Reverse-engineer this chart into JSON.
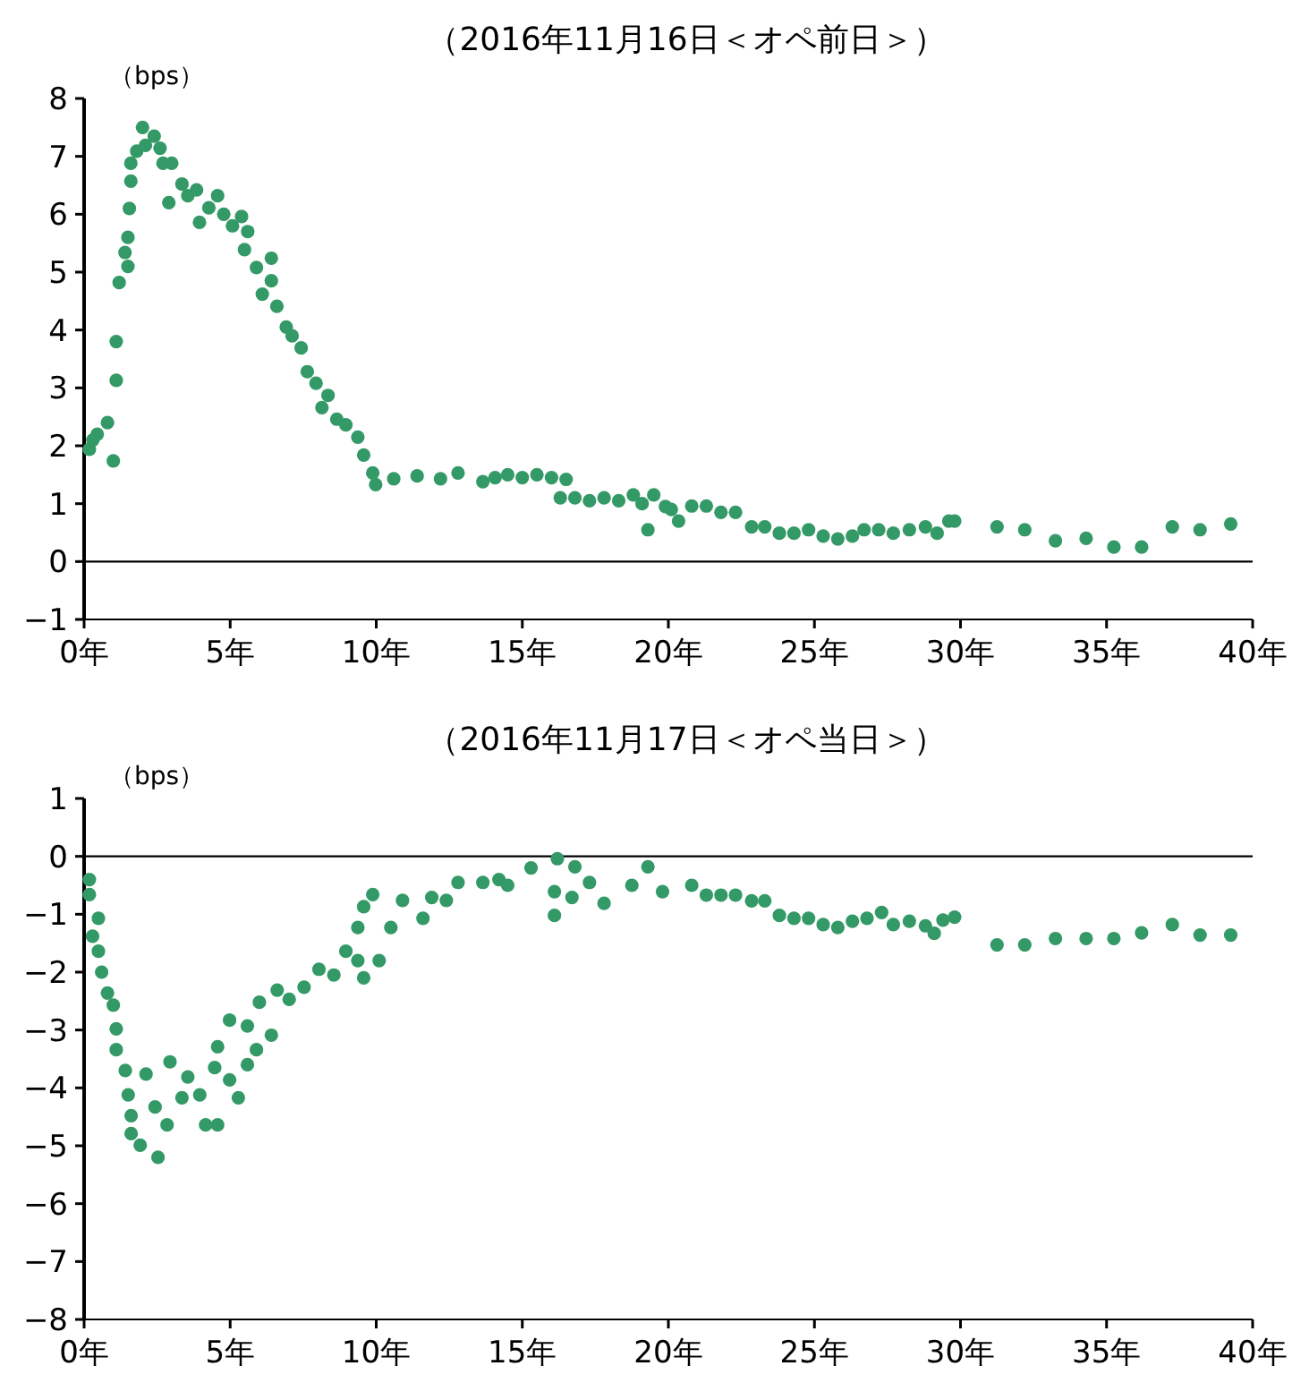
{
  "chart_data": [
    {
      "type": "scatter",
      "title": "（2016年11月16日＜オペ前日＞）",
      "ylabel": "（bps）",
      "marker": "circle",
      "grid": false,
      "xlim": [
        0,
        40
      ],
      "xticks": [
        {
          "value": 0,
          "label": "0年"
        },
        {
          "value": 5,
          "label": "5年"
        },
        {
          "value": 10,
          "label": "10年"
        },
        {
          "value": 15,
          "label": "15年"
        },
        {
          "value": 20,
          "label": "20年"
        },
        {
          "value": 25,
          "label": "25年"
        },
        {
          "value": 30,
          "label": "30年"
        },
        {
          "value": 35,
          "label": "35年"
        },
        {
          "value": 40,
          "label": "40年"
        }
      ],
      "ylim": [
        -1,
        8
      ],
      "yticks": [
        -1,
        0,
        1,
        2,
        3,
        4,
        5,
        6,
        7,
        8
      ],
      "ref_lines": [
        {
          "axis": "y",
          "value": 0,
          "color": "#000000"
        }
      ],
      "series": [
        {
          "color": "#339966",
          "x": [
            0.18,
            0.3,
            0.45,
            0.8,
            1.0,
            1.1,
            1.1,
            1.2,
            1.4,
            1.5,
            1.5,
            1.55,
            1.6,
            1.6,
            1.8,
            2.0,
            2.1,
            2.4,
            2.6,
            2.7,
            3.0,
            2.9,
            3.35,
            3.55,
            3.85,
            3.95,
            4.27,
            4.57,
            4.78,
            5.08,
            5.39,
            5.6,
            5.49,
            5.9,
            6.41,
            6.1,
            6.41,
            6.6,
            6.92,
            7.12,
            7.43,
            7.64,
            7.94,
            8.35,
            8.14,
            8.65,
            8.96,
            9.37,
            9.57,
            9.88,
            9.98,
            10.6,
            11.4,
            12.2,
            12.8,
            13.65,
            14.07,
            14.5,
            15.0,
            15.5,
            16.0,
            16.5,
            16.3,
            16.8,
            17.3,
            17.8,
            18.3,
            18.8,
            19.1,
            19.3,
            19.5,
            19.9,
            20.1,
            20.35,
            20.8,
            21.3,
            21.8,
            22.3,
            22.85,
            23.3,
            23.8,
            24.3,
            24.8,
            25.3,
            25.8,
            26.3,
            26.7,
            27.2,
            27.7,
            28.25,
            28.8,
            29.2,
            29.6,
            29.8,
            31.25,
            32.2,
            33.25,
            34.3,
            35.25,
            36.2,
            37.25,
            38.2,
            39.25
          ],
          "values": [
            1.94,
            2.1,
            2.2,
            2.4,
            1.74,
            3.8,
            3.13,
            4.82,
            5.34,
            5.6,
            5.1,
            6.1,
            6.57,
            6.88,
            7.09,
            7.5,
            7.19,
            7.35,
            7.14,
            6.88,
            6.88,
            6.2,
            6.52,
            6.32,
            6.42,
            5.86,
            6.11,
            6.32,
            6.0,
            5.8,
            5.96,
            5.7,
            5.39,
            5.08,
            5.24,
            4.62,
            4.85,
            4.41,
            4.05,
            3.9,
            3.69,
            3.28,
            3.08,
            2.87,
            2.66,
            2.46,
            2.36,
            2.15,
            1.84,
            1.53,
            1.33,
            1.43,
            1.48,
            1.43,
            1.53,
            1.38,
            1.45,
            1.5,
            1.45,
            1.5,
            1.45,
            1.42,
            1.1,
            1.1,
            1.05,
            1.1,
            1.05,
            1.15,
            1.0,
            0.55,
            1.15,
            0.95,
            0.9,
            0.7,
            0.96,
            0.96,
            0.85,
            0.85,
            0.6,
            0.6,
            0.49,
            0.49,
            0.55,
            0.44,
            0.39,
            0.44,
            0.55,
            0.55,
            0.49,
            0.55,
            0.6,
            0.49,
            0.7,
            0.7,
            0.6,
            0.55,
            0.36,
            0.4,
            0.25,
            0.25,
            0.6,
            0.55,
            0.65
          ]
        }
      ]
    },
    {
      "type": "scatter",
      "title": "（2016年11月17日＜オペ当日＞）",
      "ylabel": "（bps）",
      "marker": "circle",
      "grid": false,
      "xlim": [
        0,
        40
      ],
      "xticks": [
        {
          "value": 0,
          "label": "0年"
        },
        {
          "value": 5,
          "label": "5年"
        },
        {
          "value": 10,
          "label": "10年"
        },
        {
          "value": 15,
          "label": "15年"
        },
        {
          "value": 20,
          "label": "20年"
        },
        {
          "value": 25,
          "label": "25年"
        },
        {
          "value": 30,
          "label": "30年"
        },
        {
          "value": 35,
          "label": "35年"
        },
        {
          "value": 40,
          "label": "40年"
        }
      ],
      "ylim": [
        -8,
        1
      ],
      "yticks": [
        -8,
        -7,
        -6,
        -5,
        -4,
        -3,
        -2,
        -1,
        0,
        1
      ],
      "ref_lines": [
        {
          "axis": "y",
          "value": 0,
          "color": "#000000"
        }
      ],
      "series": [
        {
          "color": "#339966",
          "x": [
            0.18,
            0.18,
            0.49,
            0.29,
            0.49,
            0.6,
            0.8,
            1.0,
            1.1,
            1.1,
            1.41,
            1.51,
            1.61,
            1.61,
            1.92,
            2.53,
            2.12,
            2.43,
            2.84,
            2.94,
            3.35,
            3.55,
            4.16,
            4.57,
            3.96,
            4.47,
            4.57,
            4.98,
            4.98,
            5.28,
            5.59,
            5.59,
            6.0,
            5.9,
            6.41,
            6.61,
            7.02,
            7.53,
            8.04,
            8.55,
            8.96,
            9.37,
            9.57,
            10.1,
            9.37,
            9.57,
            9.88,
            10.5,
            10.9,
            11.6,
            11.9,
            12.4,
            12.8,
            13.65,
            14.2,
            14.5,
            15.3,
            16.2,
            16.8,
            16.1,
            16.1,
            16.7,
            17.3,
            17.8,
            18.75,
            19.3,
            19.8,
            20.8,
            21.3,
            21.8,
            22.3,
            22.85,
            23.3,
            23.8,
            24.3,
            24.8,
            25.3,
            25.8,
            26.3,
            26.8,
            27.3,
            27.7,
            28.25,
            28.8,
            29.1,
            29.4,
            29.8,
            31.25,
            32.2,
            33.25,
            34.3,
            35.25,
            36.2,
            37.25,
            38.2,
            39.25
          ],
          "values": [
            -0.4,
            -0.66,
            -1.07,
            -1.38,
            -1.64,
            -2.0,
            -2.36,
            -2.57,
            -2.98,
            -3.34,
            -3.7,
            -4.12,
            -4.48,
            -4.79,
            -4.99,
            -5.2,
            -3.76,
            -4.33,
            -4.64,
            -3.55,
            -4.17,
            -3.81,
            -4.64,
            -4.64,
            -4.12,
            -3.65,
            -3.29,
            -2.83,
            -3.86,
            -4.17,
            -3.6,
            -2.93,
            -2.52,
            -3.34,
            -3.09,
            -2.31,
            -2.47,
            -2.26,
            -1.95,
            -2.05,
            -1.64,
            -1.8,
            -2.1,
            -1.8,
            -1.23,
            -0.87,
            -0.66,
            -1.23,
            -0.76,
            -1.07,
            -0.71,
            -0.76,
            -0.45,
            -0.45,
            -0.4,
            -0.5,
            -0.2,
            -0.04,
            -0.18,
            -1.02,
            -0.61,
            -0.71,
            -0.45,
            -0.81,
            -0.5,
            -0.18,
            -0.61,
            -0.5,
            -0.67,
            -0.67,
            -0.67,
            -0.77,
            -0.77,
            -1.02,
            -1.07,
            -1.07,
            -1.18,
            -1.23,
            -1.12,
            -1.07,
            -0.97,
            -1.18,
            -1.12,
            -1.2,
            -1.33,
            -1.1,
            -1.05,
            -1.53,
            -1.53,
            -1.42,
            -1.42,
            -1.42,
            -1.32,
            -1.18,
            -1.36,
            -1.36
          ]
        }
      ]
    }
  ]
}
